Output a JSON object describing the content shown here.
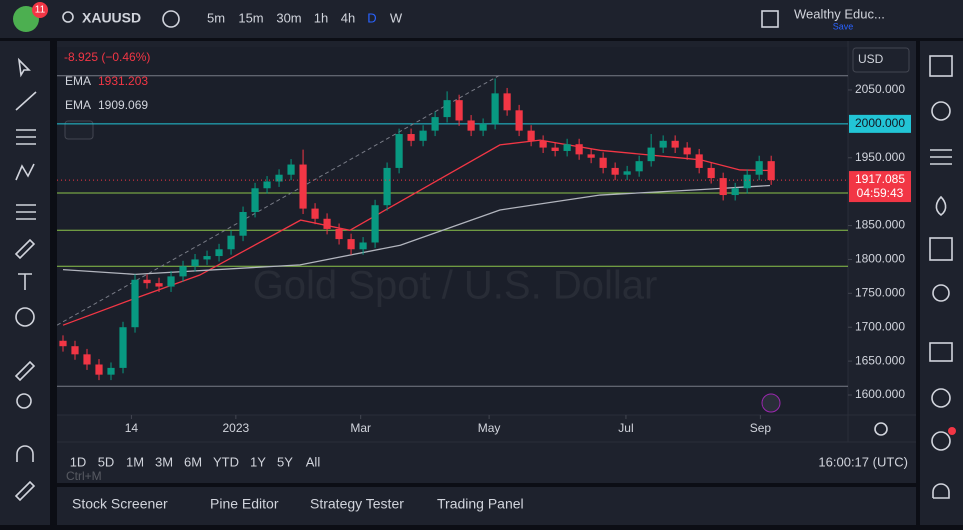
{
  "toolbar": {
    "badge": "11",
    "symbol": "XAUUSD",
    "intervals": [
      "5m",
      "15m",
      "30m",
      "1h",
      "4h",
      "D",
      "W"
    ],
    "active_interval": 5,
    "layout_name": "Wealthy Educ...",
    "save": "Save"
  },
  "legend": {
    "change": "-8.925 (−0.46%)"
  },
  "chart": {
    "type": "candlestick",
    "currency": "USD",
    "watermark": "Gold Spot / U.S. Dollar",
    "ylim": [
      1570.5,
      2113.4
    ],
    "yticks": [
      {
        "value": 2050,
        "label": "2050.000"
      },
      {
        "value": 1950,
        "label": "1950.000"
      },
      {
        "value": 1850,
        "label": "1850.000"
      },
      {
        "value": 1800,
        "label": "1800.000"
      },
      {
        "value": 1750,
        "label": "1750.000"
      },
      {
        "value": 1700,
        "label": "1700.000"
      },
      {
        "value": 1650,
        "label": "1650.000"
      },
      {
        "value": 1600,
        "label": "1600.000"
      }
    ],
    "xlim": [
      -0.5,
      65.4
    ],
    "xticks": [
      {
        "value": 5.7,
        "label": "14"
      },
      {
        "value": 14.4,
        "label": "2023"
      },
      {
        "value": 24.8,
        "label": "Mar"
      },
      {
        "value": 35.5,
        "label": "May"
      },
      {
        "value": 46.9,
        "label": "Jul"
      },
      {
        "value": 58.1,
        "label": "Sep"
      }
    ],
    "up_color": "#089981",
    "down_color": "#f23645",
    "open": [
      1680,
      1672,
      1660,
      1645,
      1630,
      1640,
      1700,
      1770,
      1765,
      1760,
      1775,
      1790,
      1800,
      1805,
      1815,
      1835,
      1870,
      1905,
      1915,
      1925,
      1940,
      1875,
      1860,
      1845,
      1830,
      1815,
      1825,
      1880,
      1935,
      1985,
      1975,
      1990,
      2010,
      2035,
      2005,
      1990,
      2000,
      2045,
      2020,
      1990,
      1975,
      1965,
      1960,
      1970,
      1955,
      1950,
      1935,
      1925,
      1930,
      1945,
      1965,
      1975,
      1965,
      1955,
      1935,
      1920,
      1895,
      1905,
      1925,
      1945
    ],
    "high": [
      1688,
      1680,
      1668,
      1653,
      1648,
      1708,
      1778,
      1778,
      1773,
      1783,
      1798,
      1808,
      1813,
      1823,
      1843,
      1878,
      1913,
      1923,
      1933,
      1948,
      1962,
      1883,
      1868,
      1853,
      1838,
      1833,
      1888,
      1943,
      1993,
      1993,
      1998,
      2018,
      2048,
      2043,
      2013,
      2008,
      2067,
      2053,
      2028,
      1998,
      1983,
      1973,
      1978,
      1978,
      1963,
      1958,
      1943,
      1938,
      1953,
      1985,
      1983,
      1983,
      1973,
      1963,
      1943,
      1928,
      1913,
      1933,
      1953,
      1953
    ],
    "low": [
      1664,
      1652,
      1637,
      1622,
      1622,
      1632,
      1692,
      1757,
      1752,
      1752,
      1767,
      1782,
      1792,
      1797,
      1807,
      1827,
      1862,
      1897,
      1907,
      1917,
      1867,
      1852,
      1837,
      1822,
      1807,
      1807,
      1817,
      1872,
      1927,
      1967,
      1967,
      1982,
      2002,
      1997,
      1982,
      1982,
      1992,
      2012,
      1982,
      1967,
      1957,
      1952,
      1952,
      1947,
      1942,
      1927,
      1917,
      1917,
      1922,
      1937,
      1957,
      1957,
      1947,
      1927,
      1912,
      1887,
      1887,
      1897,
      1917,
      1910
    ],
    "close": [
      1672,
      1660,
      1645,
      1630,
      1640,
      1700,
      1770,
      1765,
      1760,
      1775,
      1790,
      1800,
      1805,
      1815,
      1835,
      1870,
      1905,
      1915,
      1925,
      1940,
      1875,
      1860,
      1845,
      1830,
      1815,
      1825,
      1880,
      1935,
      1985,
      1975,
      1990,
      2010,
      2035,
      2005,
      1990,
      2000,
      2045,
      2020,
      1990,
      1975,
      1965,
      1960,
      1970,
      1955,
      1950,
      1935,
      1925,
      1930,
      1945,
      1965,
      1975,
      1965,
      1955,
      1935,
      1920,
      1895,
      1905,
      1925,
      1945,
      1917.085
    ],
    "countdown": "04:59:43",
    "ema": [
      {
        "name": "EMA",
        "color": "#f23645",
        "x": [
          0,
          5.6,
          11.4,
          19.8,
          23.9,
          29.75,
          36.4,
          39.75,
          44.75,
          53.1,
          56.4,
          58.9
        ],
        "values": [
          1703,
          1740,
          1777,
          1858,
          1843,
          1902,
          1969,
          1976,
          1961,
          1947,
          1932,
          1931.203
        ]
      },
      {
        "name": "EMA",
        "color": "#b2b5be",
        "x": [
          0,
          6,
          19.75,
          28.1,
          36.4,
          44.75,
          53.1,
          58.9
        ],
        "values": [
          1785,
          1778,
          1792,
          1821,
          1873,
          1895,
          1903,
          1909.069
        ]
      }
    ],
    "levels": [
      {
        "value": 2071,
        "color": "#787b86"
      },
      {
        "value": 2000,
        "color": "#22c5d6",
        "label": "2000.000"
      },
      {
        "value": 1898,
        "color": "#8bc34a"
      },
      {
        "value": 1843,
        "color": "#8bc34a"
      },
      {
        "value": 1790,
        "color": "#8bc34a"
      },
      {
        "value": 1613,
        "color": "#787b86"
      }
    ],
    "trendline": {
      "x": [
        -0.5,
        36.4
      ],
      "y": [
        1703,
        2072
      ]
    }
  },
  "range_buttons": [
    "1D",
    "5D",
    "1M",
    "3M",
    "6M",
    "YTD",
    "1Y",
    "5Y",
    "All"
  ],
  "clock": "16:00:17 (UTC)",
  "tabs": [
    "Stock Screener",
    "Pine Editor",
    "Strategy Tester",
    "Trading Panel"
  ],
  "hint": "Ctrl+M"
}
